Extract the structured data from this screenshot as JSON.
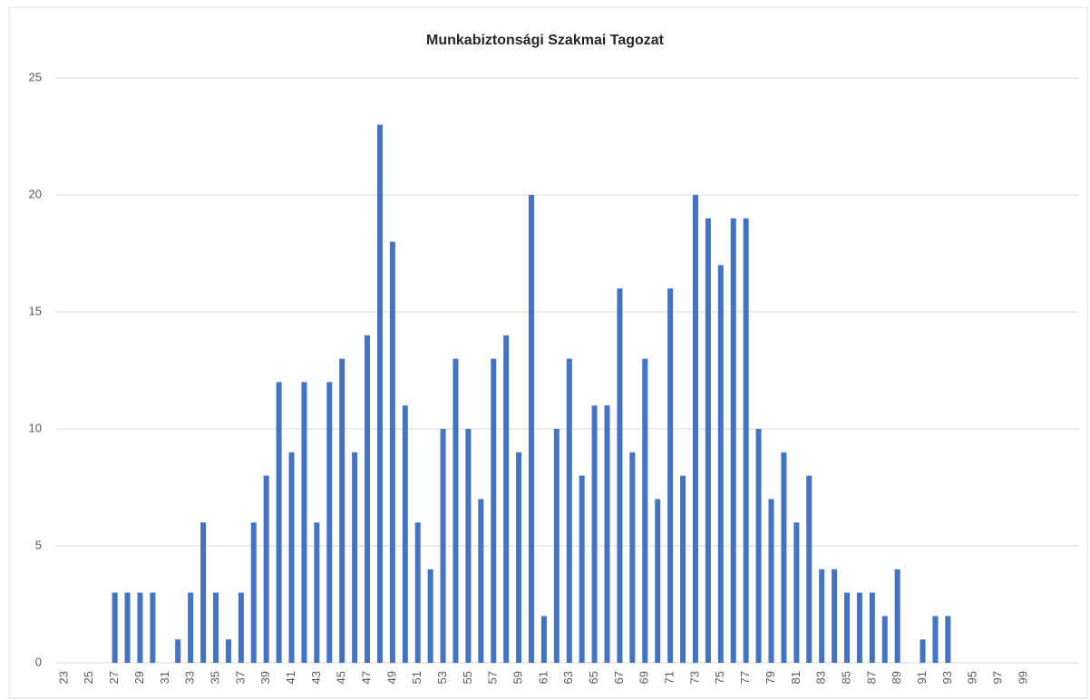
{
  "chart_data": {
    "type": "bar",
    "title": "Munkabiztonsági Szakmai Tagozat",
    "categories": [
      "23",
      null,
      "25",
      null,
      "27",
      null,
      "29",
      null,
      "31",
      null,
      "33",
      null,
      "35",
      null,
      "37",
      null,
      "39",
      null,
      "41",
      null,
      "43",
      null,
      "45",
      null,
      "47",
      null,
      "49",
      null,
      "51",
      null,
      "53",
      null,
      "55",
      null,
      "57",
      null,
      "59",
      null,
      "61",
      null,
      "63",
      null,
      "65",
      null,
      "67",
      null,
      "69",
      null,
      "71",
      null,
      "73",
      null,
      "75",
      null,
      "77",
      null,
      "79",
      null,
      "81",
      null,
      "83",
      null,
      "85",
      null,
      "87",
      null,
      "89",
      null,
      "91",
      null,
      "93",
      null,
      "95",
      null,
      "97",
      null,
      "99",
      null
    ],
    "values": [
      0,
      0,
      0,
      0,
      3,
      3,
      3,
      3,
      0,
      1,
      3,
      6,
      3,
      1,
      3,
      6,
      8,
      12,
      9,
      12,
      6,
      12,
      13,
      9,
      14,
      23,
      18,
      11,
      6,
      4,
      10,
      13,
      10,
      7,
      13,
      14,
      9,
      20,
      2,
      10,
      13,
      8,
      11,
      11,
      16,
      9,
      13,
      7,
      16,
      8,
      20,
      19,
      17,
      19,
      19,
      10,
      7,
      9,
      6,
      8,
      4,
      4,
      3,
      3,
      3,
      2,
      4,
      0,
      1,
      2,
      2,
      0,
      0,
      0,
      0,
      0,
      0,
      0
    ],
    "color": "#4472c4",
    "ylim": [
      0,
      25
    ],
    "yticks": [
      0,
      5,
      10,
      15,
      20,
      25
    ],
    "grid": true
  }
}
